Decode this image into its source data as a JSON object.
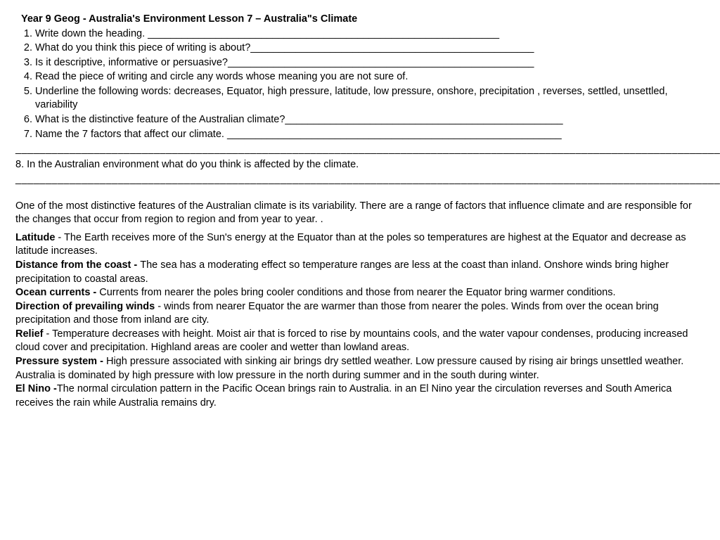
{
  "title": "Year 9 Geog - Australia's Environment Lesson 7 – Australia\"s Climate",
  "questions": {
    "q1": "Write down the heading. ______________________________________________________________",
    "q2": "What do you think this piece of writing is about?__________________________________________________",
    "q3": "Is it descriptive, informative or persuasive?______________________________________________________",
    "q4": "Read the piece of writing and circle any words whose meaning you are not sure of.",
    "q5": "Underline the following words: decreases, Equator, high pressure, latitude, low pressure, onshore, precipitation , reverses, settled, unsettled, variability",
    "q6": "What is the distinctive feature of the Australian climate?_________________________________________________",
    "q7": "Name the 7 factors that affect our climate. ___________________________________________________________"
  },
  "blanks1": "___________________________________________________________________________________________________________________________________________________________________________________________________________________________________________________________________________",
  "q8": "8. In the Australian environment what do you think is affected by the climate.",
  "blanks2": "____________________________________________________________________________________________________________________________________________________________________________________________________________________________________________________________________________________________________________________________________________________________",
  "intro": "One of the most distinctive features of the Australian climate is its variability. There are a range of factors that influence climate and are responsible for the changes that occur from region to region and from year to year. .",
  "factors": {
    "latitude_label": "Latitude",
    "latitude_text": "  - The Earth receives more of the Sun's energy at the Equator than at the poles so temperatures are highest at the Equator and decrease as latitude increases.",
    "distance_label": "Distance from the coast - ",
    "distance_text": " The sea has a moderating effect so temperature ranges are less at the coast than inland. Onshore winds bring higher precipitation to coastal areas.",
    "ocean_label": "Ocean currents - ",
    "ocean_text": " Currents from nearer the poles bring cooler conditions and those from nearer the Equator bring warmer conditions.",
    "winds_label": "Direction of prevailing winds",
    "winds_text": "  - winds from nearer Equator the are warmer than those from nearer the poles. Winds from over the ocean bring precipitation and those from inland are city.",
    "relief_label": "Relief",
    "relief_text": "  - Temperature decreases with height. Moist air that is forced to rise by mountains cools, and the water vapour condenses, producing increased cloud cover  and precipitation. Highland areas are cooler and wetter than lowland areas.",
    "pressure_label": "Pressure system - ",
    "pressure_text": " High pressure associated with sinking air brings dry settled weather. Low pressure caused by rising air brings unsettled weather. Australia is dominated by high pressure with low pressure in the north during summer and in the south during winter.",
    "elnino_label": "El Nino -",
    "elnino_text": "The normal circulation pattern in the Pacific Ocean brings rain to Australia. in an El Nino year the circulation reverses and South America receives the rain while Australia remains dry."
  }
}
